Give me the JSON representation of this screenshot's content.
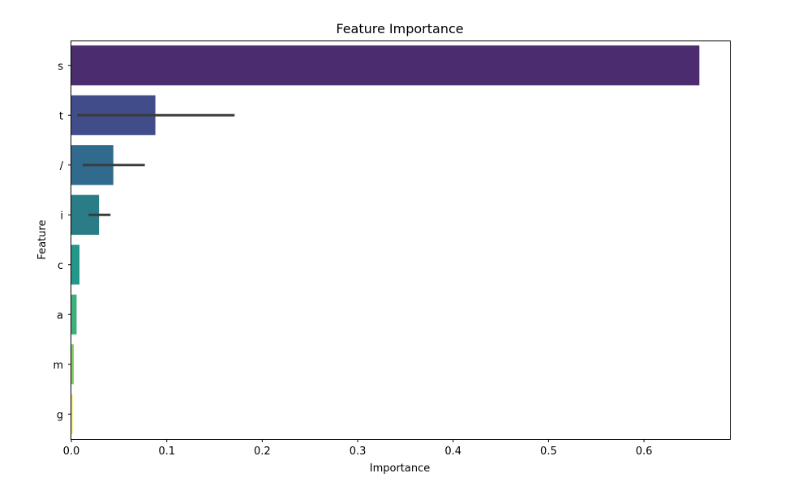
{
  "chart_data": {
    "type": "bar",
    "orientation": "horizontal",
    "title": "Feature Importance",
    "xlabel": "Importance",
    "ylabel": "Feature",
    "xlim": [
      0,
      0.69
    ],
    "xticks": [
      0.0,
      0.1,
      0.2,
      0.3,
      0.4,
      0.5,
      0.6
    ],
    "xtick_labels": [
      "0.0",
      "0.1",
      "0.2",
      "0.3",
      "0.4",
      "0.5",
      "0.6"
    ],
    "grid": false,
    "categories": [
      "s",
      "t",
      "/",
      "i",
      "c",
      "a",
      "m",
      "g"
    ],
    "values": [
      0.658,
      0.088,
      0.044,
      0.029,
      0.0085,
      0.0055,
      0.0025,
      0.0012
    ],
    "error_bars": [
      null,
      [
        0.006,
        0.171
      ],
      [
        0.012,
        0.077
      ],
      [
        0.018,
        0.041
      ],
      null,
      null,
      null,
      null
    ],
    "colors": [
      "#4b2c6f",
      "#414d8a",
      "#306a8d",
      "#2a7d86",
      "#22978a",
      "#3db07a",
      "#7ecf5a",
      "#f0e41f"
    ],
    "error_color": "#3b3b3b"
  }
}
